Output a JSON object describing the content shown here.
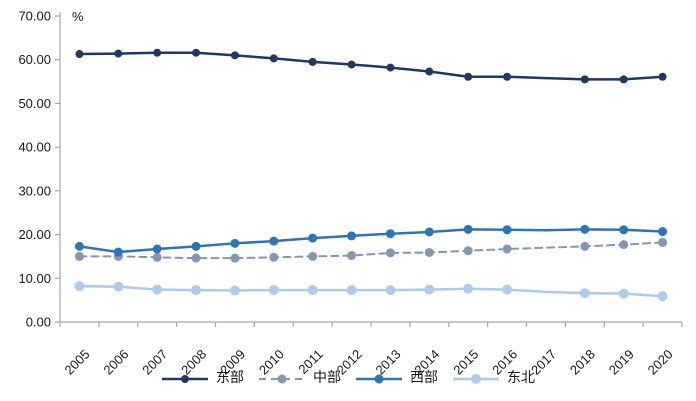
{
  "chart_data": {
    "type": "line",
    "title": "",
    "unit_label": "%",
    "xlabel": "",
    "ylabel": "",
    "ylim": [
      0,
      70
    ],
    "ytick_step": 10,
    "ytick_decimals": 2,
    "grid": false,
    "legend_position": "bottom",
    "x_label_rotation": -45,
    "axis_color": "#a6a6a6",
    "tick_label_color": "#1a1a1a",
    "categories": [
      "2005",
      "2006",
      "2007",
      "2008",
      "2009",
      "2010",
      "2011",
      "2012",
      "2013",
      "2014",
      "2015",
      "2016",
      "2017",
      "2018",
      "2019",
      "2020"
    ],
    "marker_skip_category": "2017",
    "series": [
      {
        "name": "东部",
        "color": "#1f3864",
        "style": "solid",
        "line_width": 2.5,
        "marker_radius": 4,
        "values": [
          61.3,
          61.4,
          61.6,
          61.6,
          61.0,
          60.3,
          59.5,
          58.9,
          58.2,
          57.3,
          56.1,
          56.1,
          55.8,
          55.5,
          55.5,
          56.1
        ]
      },
      {
        "name": "中部",
        "color": "#8497b0",
        "style": "dashed",
        "line_width": 2,
        "marker_radius": 4.5,
        "values": [
          15.0,
          15.0,
          14.8,
          14.6,
          14.6,
          14.8,
          15.0,
          15.2,
          15.8,
          15.9,
          16.3,
          16.7,
          17.0,
          17.3,
          17.7,
          18.2
        ]
      },
      {
        "name": "西部",
        "color": "#2e75b6",
        "style": "solid",
        "line_width": 2.5,
        "marker_radius": 4.5,
        "values": [
          17.3,
          16.0,
          16.7,
          17.3,
          18.0,
          18.5,
          19.2,
          19.7,
          20.2,
          20.6,
          21.2,
          21.1,
          21.0,
          21.2,
          21.1,
          20.7
        ]
      },
      {
        "name": "东北",
        "color": "#aecbee",
        "style": "solid",
        "line_width": 2.5,
        "marker_radius": 5,
        "values": [
          8.2,
          8.1,
          7.4,
          7.3,
          7.2,
          7.3,
          7.3,
          7.3,
          7.3,
          7.4,
          7.6,
          7.4,
          6.9,
          6.6,
          6.5,
          5.9
        ]
      }
    ]
  }
}
